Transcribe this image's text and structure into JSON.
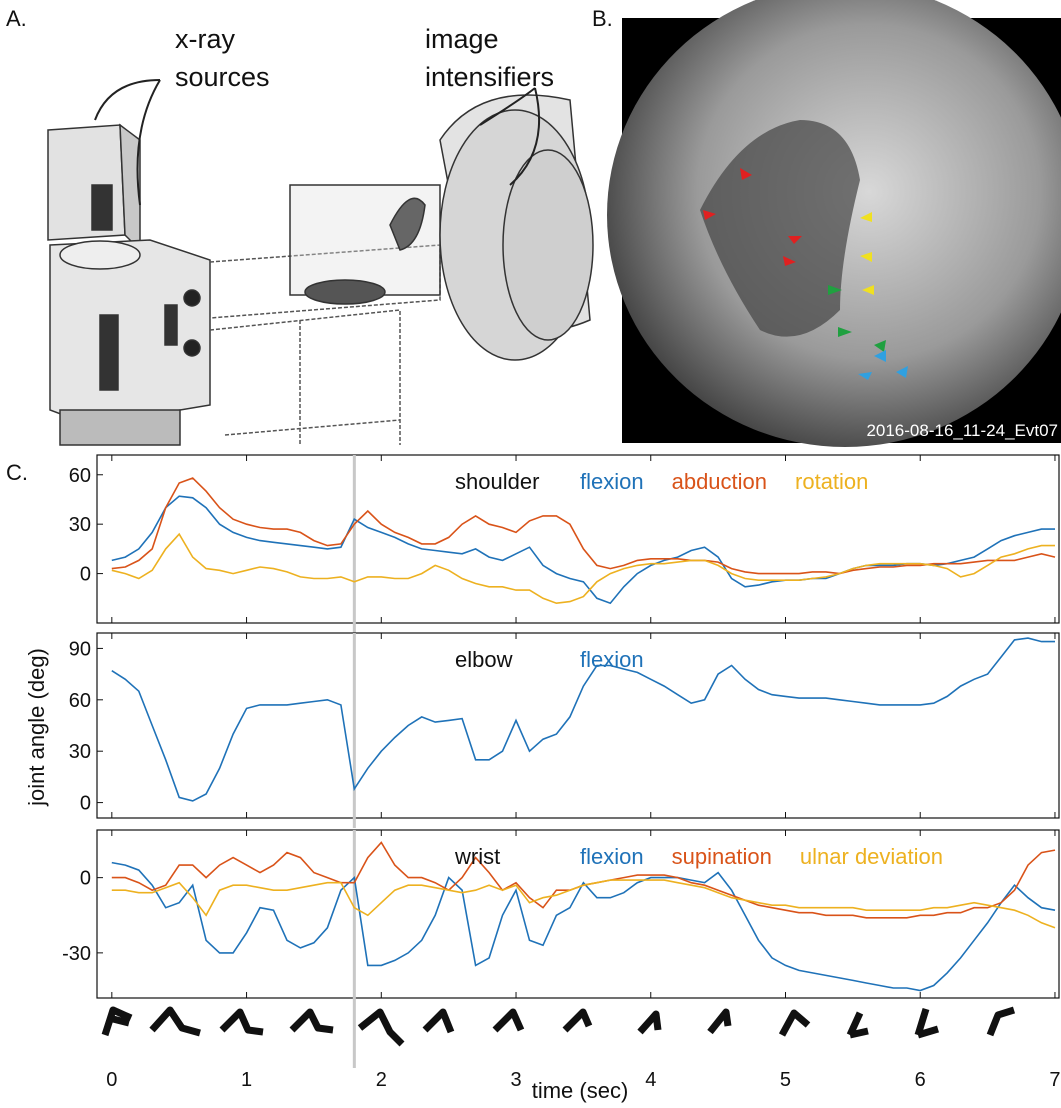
{
  "panel_a": {
    "label": "A.",
    "annotations": [
      {
        "lines": [
          "x-ray",
          "sources"
        ]
      },
      {
        "lines": [
          "image",
          "intensifiers"
        ]
      }
    ]
  },
  "panel_b": {
    "label": "B.",
    "caption": "2016-08-16_11-24_Evt07"
  },
  "panel_c": {
    "label": "C.",
    "ylabel": "joint angle (deg)",
    "xlabel": "time (sec)"
  },
  "chart_data": [
    {
      "type": "line",
      "title": "shoulder",
      "x": [
        0,
        0.1,
        0.2,
        0.3,
        0.4,
        0.5,
        0.6,
        0.7,
        0.8,
        0.9,
        1,
        1.1,
        1.2,
        1.3,
        1.4,
        1.5,
        1.6,
        1.7,
        1.8,
        1.9,
        2,
        2.1,
        2.2,
        2.3,
        2.4,
        2.5,
        2.6,
        2.7,
        2.8,
        2.9,
        3,
        3.1,
        3.2,
        3.3,
        3.4,
        3.5,
        3.6,
        3.7,
        3.8,
        3.9,
        4,
        4.1,
        4.2,
        4.3,
        4.4,
        4.5,
        4.6,
        4.7,
        4.8,
        4.9,
        5,
        5.1,
        5.2,
        5.3,
        5.4,
        5.5,
        5.6,
        5.7,
        5.8,
        5.9,
        6,
        6.1,
        6.2,
        6.3,
        6.4,
        6.5,
        6.6,
        6.7,
        6.8,
        6.9,
        7
      ],
      "series": [
        {
          "name": "flexion",
          "color": "#1f72b8",
          "values": [
            8,
            10,
            15,
            25,
            40,
            47,
            46,
            40,
            30,
            25,
            22,
            20,
            19,
            18,
            17,
            16,
            15,
            16,
            33,
            28,
            25,
            22,
            18,
            15,
            14,
            13,
            12,
            15,
            10,
            8,
            12,
            16,
            5,
            0,
            -3,
            -5,
            -15,
            -18,
            -8,
            0,
            5,
            8,
            10,
            14,
            16,
            10,
            -3,
            -8,
            -7,
            -5,
            -4,
            -4,
            -3,
            -3,
            0,
            3,
            5,
            5,
            5,
            6,
            6,
            5,
            6,
            8,
            10,
            15,
            20,
            23,
            25,
            27,
            27
          ]
        },
        {
          "name": "abduction",
          "color": "#d95319",
          "values": [
            3,
            4,
            8,
            15,
            40,
            55,
            58,
            50,
            40,
            33,
            30,
            28,
            27,
            27,
            25,
            20,
            17,
            18,
            30,
            38,
            30,
            25,
            22,
            18,
            18,
            22,
            30,
            35,
            30,
            28,
            25,
            32,
            35,
            35,
            30,
            15,
            5,
            3,
            5,
            8,
            9,
            9,
            9,
            8,
            8,
            7,
            3,
            1,
            0,
            0,
            0,
            0,
            1,
            1,
            0,
            2,
            3,
            4,
            4,
            5,
            5,
            6,
            6,
            6,
            7,
            8,
            8,
            8,
            10,
            12,
            10
          ]
        },
        {
          "name": "rotation",
          "color": "#edb120",
          "values": [
            2,
            0,
            -3,
            2,
            15,
            24,
            10,
            3,
            2,
            0,
            2,
            4,
            3,
            1,
            -2,
            -3,
            -3,
            -2,
            -5,
            -2,
            -2,
            -3,
            -3,
            0,
            5,
            2,
            -3,
            -6,
            -8,
            -8,
            -10,
            -10,
            -15,
            -18,
            -17,
            -14,
            -5,
            0,
            3,
            5,
            6,
            6,
            7,
            8,
            8,
            5,
            0,
            -3,
            -4,
            -4,
            -4,
            -4,
            -3,
            -2,
            0,
            3,
            5,
            6,
            6,
            6,
            6,
            5,
            3,
            -2,
            0,
            5,
            10,
            12,
            15,
            17,
            17
          ]
        }
      ],
      "xlim": [
        -0.11,
        7.03
      ],
      "xticks": [
        0,
        1,
        2,
        3,
        4,
        5,
        6,
        7
      ],
      "ylim": [
        -30,
        72
      ],
      "yticks": [
        0,
        30,
        60
      ],
      "highlight_x": 1.8
    },
    {
      "type": "line",
      "title": "elbow",
      "x": [
        0,
        0.1,
        0.2,
        0.3,
        0.4,
        0.5,
        0.6,
        0.7,
        0.8,
        0.9,
        1,
        1.1,
        1.2,
        1.3,
        1.4,
        1.5,
        1.6,
        1.7,
        1.8,
        1.9,
        2,
        2.1,
        2.2,
        2.3,
        2.4,
        2.5,
        2.6,
        2.7,
        2.8,
        2.9,
        3,
        3.1,
        3.2,
        3.3,
        3.4,
        3.5,
        3.6,
        3.7,
        3.8,
        3.9,
        4,
        4.1,
        4.2,
        4.3,
        4.4,
        4.5,
        4.6,
        4.7,
        4.8,
        4.9,
        5,
        5.1,
        5.2,
        5.3,
        5.4,
        5.5,
        5.6,
        5.7,
        5.8,
        5.9,
        6,
        6.1,
        6.2,
        6.3,
        6.4,
        6.5,
        6.6,
        6.7,
        6.8,
        6.9,
        7
      ],
      "series": [
        {
          "name": "flexion",
          "color": "#1f72b8",
          "values": [
            77,
            72,
            65,
            45,
            25,
            3,
            1,
            5,
            20,
            40,
            55,
            57,
            57,
            57,
            58,
            59,
            60,
            57,
            8,
            20,
            30,
            38,
            45,
            50,
            47,
            48,
            49,
            25,
            25,
            30,
            48,
            30,
            37,
            40,
            50,
            68,
            80,
            80,
            78,
            76,
            72,
            68,
            63,
            58,
            60,
            75,
            80,
            72,
            66,
            63,
            62,
            61,
            61,
            61,
            60,
            59,
            58,
            57,
            57,
            57,
            57,
            58,
            62,
            68,
            72,
            75,
            85,
            95,
            96,
            94,
            94
          ]
        }
      ],
      "xlim": [
        -0.11,
        7.03
      ],
      "xticks": [
        0,
        1,
        2,
        3,
        4,
        5,
        6,
        7
      ],
      "ylim": [
        -9,
        99
      ],
      "yticks": [
        0,
        30,
        60,
        90
      ],
      "highlight_x": 1.8
    },
    {
      "type": "line",
      "title": "wrist",
      "x": [
        0,
        0.1,
        0.2,
        0.3,
        0.4,
        0.5,
        0.6,
        0.7,
        0.8,
        0.9,
        1,
        1.1,
        1.2,
        1.3,
        1.4,
        1.5,
        1.6,
        1.7,
        1.8,
        1.9,
        2,
        2.1,
        2.2,
        2.3,
        2.4,
        2.5,
        2.6,
        2.7,
        2.8,
        2.9,
        3,
        3.1,
        3.2,
        3.3,
        3.4,
        3.5,
        3.6,
        3.7,
        3.8,
        3.9,
        4,
        4.1,
        4.2,
        4.3,
        4.4,
        4.5,
        4.6,
        4.7,
        4.8,
        4.9,
        5,
        5.1,
        5.2,
        5.3,
        5.4,
        5.5,
        5.6,
        5.7,
        5.8,
        5.9,
        6,
        6.1,
        6.2,
        6.3,
        6.4,
        6.5,
        6.6,
        6.7,
        6.8,
        6.9,
        7
      ],
      "series": [
        {
          "name": "flexion",
          "color": "#1f72b8",
          "values": [
            6,
            5,
            3,
            -3,
            -12,
            -10,
            -3,
            -25,
            -30,
            -30,
            -22,
            -12,
            -13,
            -25,
            -28,
            -26,
            -20,
            -5,
            0,
            -35,
            -35,
            -33,
            -30,
            -25,
            -15,
            0,
            -5,
            -35,
            -32,
            -15,
            -5,
            -25,
            -27,
            -15,
            -12,
            -2,
            -8,
            -8,
            -6,
            -2,
            0,
            0,
            0,
            -1,
            -2,
            2,
            -5,
            -15,
            -25,
            -32,
            -35,
            -37,
            -38,
            -39,
            -40,
            -41,
            -42,
            -43,
            -44,
            -44,
            -45,
            -43,
            -38,
            -32,
            -25,
            -18,
            -10,
            -3,
            -8,
            -12,
            -13
          ]
        },
        {
          "name": "supination",
          "color": "#d95319",
          "values": [
            0,
            0,
            -2,
            -5,
            -3,
            5,
            5,
            0,
            5,
            8,
            5,
            2,
            5,
            10,
            8,
            2,
            0,
            -2,
            -2,
            8,
            14,
            5,
            0,
            0,
            -2,
            -5,
            0,
            8,
            2,
            -5,
            -2,
            -8,
            -12,
            -5,
            -5,
            -3,
            -2,
            -1,
            0,
            1,
            1,
            1,
            0,
            -2,
            -3,
            -5,
            -7,
            -9,
            -11,
            -12,
            -13,
            -14,
            -14,
            -15,
            -15,
            -15,
            -16,
            -16,
            -16,
            -16,
            -15,
            -15,
            -14,
            -14,
            -12,
            -12,
            -10,
            -5,
            5,
            10,
            11
          ]
        },
        {
          "name": "ulnar deviation",
          "color": "#edb120",
          "values": [
            -5,
            -5,
            -6,
            -6,
            -4,
            -2,
            -8,
            -15,
            -5,
            -3,
            -3,
            -4,
            -5,
            -5,
            -4,
            -3,
            -2,
            -2,
            -12,
            -15,
            -10,
            -5,
            -3,
            -3,
            -4,
            -5,
            -6,
            -5,
            -3,
            -5,
            -3,
            -10,
            -8,
            -7,
            -5,
            -3,
            -2,
            -1,
            -1,
            -1,
            -1,
            -1,
            -2,
            -3,
            -4,
            -6,
            -8,
            -9,
            -10,
            -11,
            -11,
            -12,
            -12,
            -12,
            -12,
            -12,
            -13,
            -13,
            -13,
            -13,
            -13,
            -12,
            -12,
            -11,
            -10,
            -11,
            -12,
            -13,
            -15,
            -18,
            -20
          ]
        }
      ],
      "xlim": [
        -0.11,
        7.03
      ],
      "xticks": [
        0,
        1,
        2,
        3,
        4,
        5,
        6,
        7
      ],
      "ylim": [
        -48,
        19
      ],
      "yticks": [
        -30,
        0
      ],
      "highlight_x": 1.8
    }
  ]
}
